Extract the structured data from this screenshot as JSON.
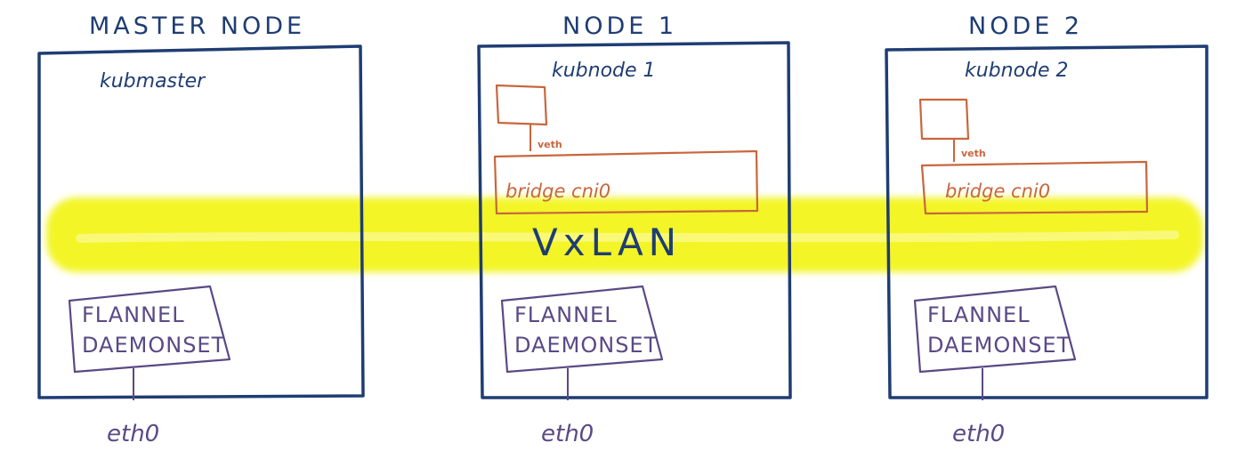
{
  "colors": {
    "node_frame": "#1f3d73",
    "pod_bridge": "#c9663c",
    "flannel": "#5a4985",
    "eth": "#5a4985",
    "vxlan_band": "#f3f528",
    "vxlan_text": "#1f3d73"
  },
  "vxlan": {
    "label": "VxLAN"
  },
  "nodes": [
    {
      "title": "MASTER NODE",
      "hostname": "kubmaster",
      "flannel_line1": "FLANNEL",
      "flannel_line2": "DAEMONSET",
      "interface": "eth0"
    },
    {
      "title": "NODE 1",
      "hostname": "kubnode 1",
      "veth_label": "veth",
      "bridge_label": "bridge cni0",
      "flannel_line1": "FLANNEL",
      "flannel_line2": "DAEMONSET",
      "interface": "eth0"
    },
    {
      "title": "NODE 2",
      "hostname": "kubnode 2",
      "veth_label": "veth",
      "bridge_label": "bridge cni0",
      "flannel_line1": "FLANNEL",
      "flannel_line2": "DAEMONSET",
      "interface": "eth0"
    }
  ]
}
